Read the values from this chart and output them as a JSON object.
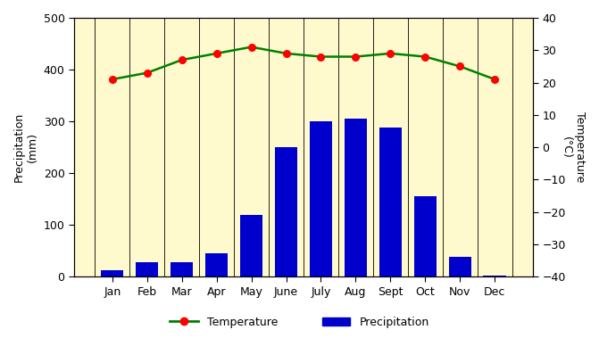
{
  "months": [
    "Jan",
    "Feb",
    "Mar",
    "Apr",
    "May",
    "June",
    "July",
    "Aug",
    "Sept",
    "Oct",
    "Nov",
    "Dec"
  ],
  "precipitation": [
    12,
    28,
    28,
    45,
    120,
    250,
    300,
    305,
    288,
    155,
    38,
    2
  ],
  "temperature": [
    21,
    23,
    27,
    29,
    31,
    29,
    28,
    28,
    29,
    28,
    25,
    21
  ],
  "bar_color": "#0000CC",
  "line_color": "#008000",
  "marker_color": "#FF0000",
  "plot_bg_color": "#FFFACD",
  "fig_bg_color": "#FFFFFF",
  "precip_ylim": [
    0,
    500
  ],
  "precip_yticks": [
    0,
    100,
    200,
    300,
    400,
    500
  ],
  "temp_ylim": [
    -40,
    40
  ],
  "temp_yticks": [
    -40,
    -30,
    -20,
    -10,
    0,
    10,
    20,
    30,
    40
  ],
  "ylabel_left": "Precipitation\n(mm)",
  "ylabel_right": "Temperature\n(°C)",
  "legend_temp": "Temperature",
  "legend_precip": "Precipitation"
}
